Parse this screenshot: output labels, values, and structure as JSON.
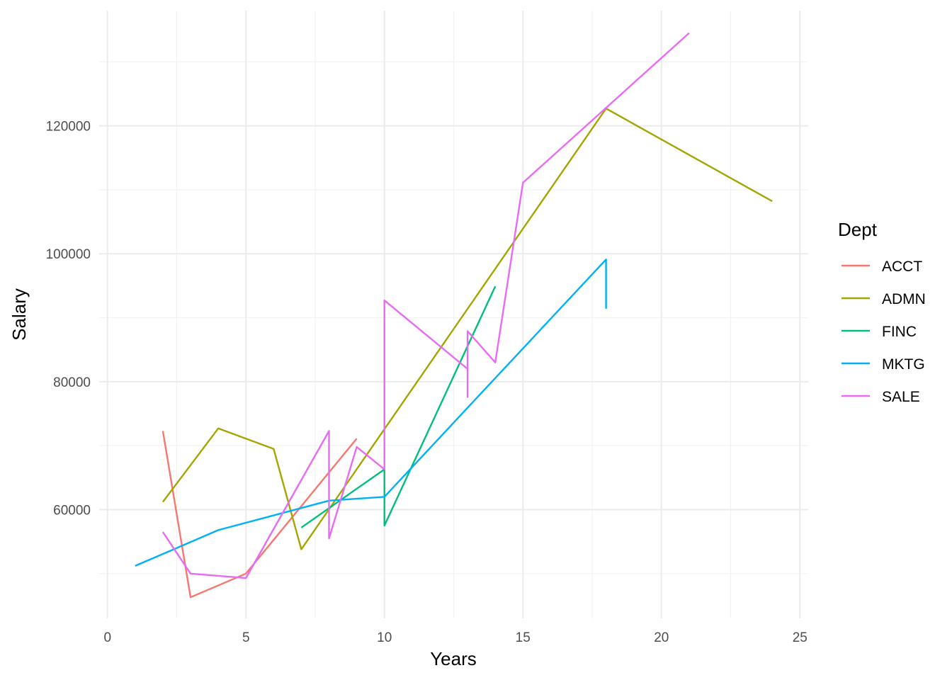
{
  "chart_data": {
    "type": "line",
    "title": "",
    "xlabel": "Years",
    "ylabel": "Salary",
    "xlim": [
      -0.3,
      25.3
    ],
    "ylim": [
      43000,
      138000
    ],
    "x_ticks": [
      0,
      5,
      10,
      15,
      20,
      25
    ],
    "x_tick_labels": [
      "0",
      "5",
      "10",
      "15",
      "20",
      "25"
    ],
    "x_minor": [
      2.5,
      7.5,
      12.5,
      17.5,
      22.5
    ],
    "y_ticks": [
      60000,
      80000,
      100000,
      120000
    ],
    "y_tick_labels": [
      "60000",
      "80000",
      "100000",
      "120000"
    ],
    "y_minor": [
      50000,
      70000,
      90000,
      110000,
      130000
    ],
    "grid": true,
    "legend": {
      "title": "Dept",
      "position": "right"
    },
    "series": [
      {
        "name": "ACCT",
        "color": "#F8766D",
        "points": [
          [
            2,
            72300
          ],
          [
            3,
            46300
          ],
          [
            5,
            50000
          ],
          [
            9,
            71100
          ]
        ]
      },
      {
        "name": "ADMN",
        "color": "#A3A500",
        "points": [
          [
            2,
            61200
          ],
          [
            4,
            72700
          ],
          [
            6,
            69500
          ],
          [
            7,
            53800
          ],
          [
            18,
            122700
          ],
          [
            24,
            108200
          ]
        ]
      },
      {
        "name": "FINC",
        "color": "#00BF7D",
        "points": [
          [
            7,
            57200
          ],
          [
            10,
            66300
          ],
          [
            10,
            57500
          ],
          [
            14,
            94900
          ]
        ]
      },
      {
        "name": "MKTG",
        "color": "#00B0F6",
        "points": [
          [
            1,
            51200
          ],
          [
            4,
            56800
          ],
          [
            8,
            61400
          ],
          [
            10,
            62000
          ],
          [
            18,
            99100
          ],
          [
            18,
            91400
          ]
        ]
      },
      {
        "name": "SALE",
        "color": "#E76BF3",
        "points": [
          [
            2,
            56500
          ],
          [
            3,
            50000
          ],
          [
            5,
            49300
          ],
          [
            8,
            72300
          ],
          [
            8,
            55500
          ],
          [
            9,
            69800
          ],
          [
            10,
            66300
          ],
          [
            10,
            92700
          ],
          [
            13,
            82000
          ],
          [
            13,
            77600
          ],
          [
            13,
            87900
          ],
          [
            14,
            83000
          ],
          [
            15,
            111100
          ],
          [
            21,
            134500
          ]
        ]
      }
    ]
  }
}
